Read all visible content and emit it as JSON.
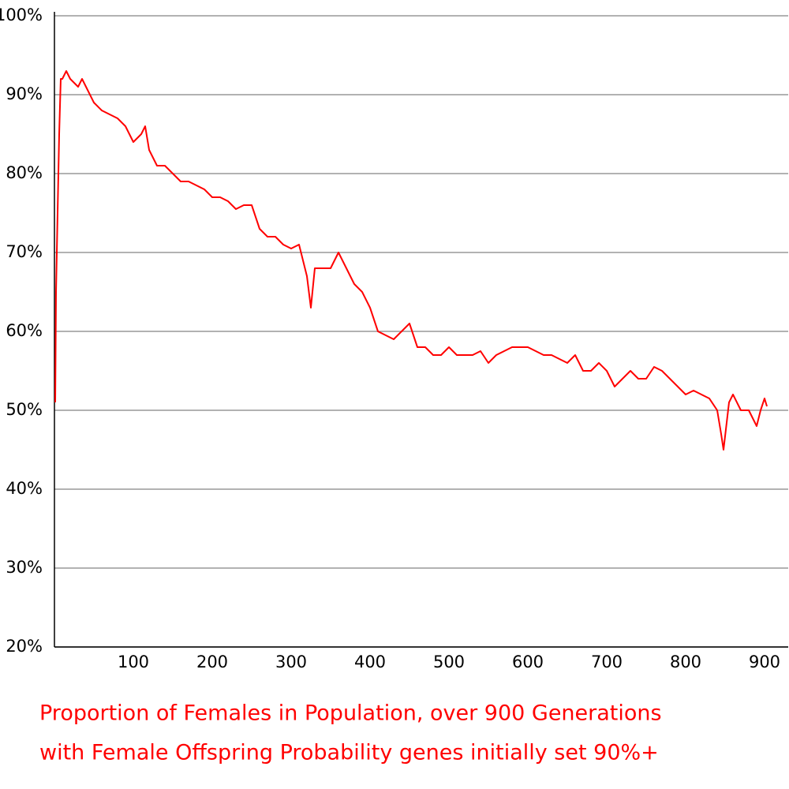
{
  "chart_data": {
    "type": "line",
    "title": [
      "Proportion of Females in Population, over 900 Generations",
      "with Female Offspring Probability genes initially set 90%+"
    ],
    "x": [
      1,
      2,
      4,
      6,
      8,
      10,
      15,
      20,
      30,
      35,
      40,
      50,
      60,
      70,
      80,
      90,
      100,
      110,
      115,
      120,
      130,
      140,
      150,
      160,
      170,
      180,
      190,
      200,
      210,
      220,
      230,
      240,
      250,
      260,
      270,
      280,
      290,
      300,
      310,
      320,
      325,
      330,
      340,
      350,
      360,
      370,
      380,
      390,
      400,
      410,
      420,
      430,
      440,
      450,
      460,
      470,
      480,
      490,
      500,
      510,
      520,
      530,
      540,
      550,
      560,
      570,
      580,
      590,
      600,
      610,
      620,
      630,
      640,
      650,
      660,
      670,
      680,
      690,
      700,
      710,
      720,
      730,
      740,
      750,
      760,
      770,
      780,
      790,
      800,
      810,
      820,
      830,
      840,
      845,
      848,
      855,
      860,
      870,
      880,
      890,
      895,
      900,
      903
    ],
    "series": [
      {
        "color": "#ff0000",
        "values": [
          51,
          65,
          75,
          85,
          92,
          92,
          93,
          92,
          91,
          92,
          91,
          89,
          88,
          87.5,
          87,
          86,
          84,
          85,
          86,
          83,
          81,
          81,
          80,
          79,
          79,
          78.5,
          78,
          77,
          77,
          76.5,
          75.5,
          76,
          76,
          73,
          72,
          72,
          71,
          70.5,
          71,
          67,
          63,
          68,
          68,
          68,
          70,
          68,
          66,
          65,
          63,
          60,
          59.5,
          59,
          60,
          61,
          58,
          58,
          57,
          57,
          58,
          57,
          57,
          57,
          57.5,
          56,
          57,
          57.5,
          58,
          58,
          58,
          57.5,
          57,
          57,
          56.5,
          56,
          57,
          55,
          55,
          56,
          55,
          53,
          54,
          55,
          54,
          54,
          55.5,
          55,
          54,
          53,
          52,
          52.5,
          52,
          51.5,
          50,
          47,
          45,
          51,
          52,
          50,
          50,
          48,
          50,
          51.5,
          50.5
        ]
      }
    ],
    "xlim": [
      0,
      930
    ],
    "ylim": [
      20,
      100
    ],
    "xticks": [
      100,
      200,
      300,
      400,
      500,
      600,
      700,
      800,
      900
    ],
    "yticks": [
      {
        "value": 20,
        "label": "20%"
      },
      {
        "value": 30,
        "label": "30%"
      },
      {
        "value": 40,
        "label": "40%"
      },
      {
        "value": 50,
        "label": "50%"
      },
      {
        "value": 60,
        "label": "60%"
      },
      {
        "value": 70,
        "label": "70%"
      },
      {
        "value": 80,
        "label": "80%"
      },
      {
        "value": 90,
        "label": "90%"
      },
      {
        "value": 100,
        "label": "100%"
      }
    ],
    "grid": true
  }
}
